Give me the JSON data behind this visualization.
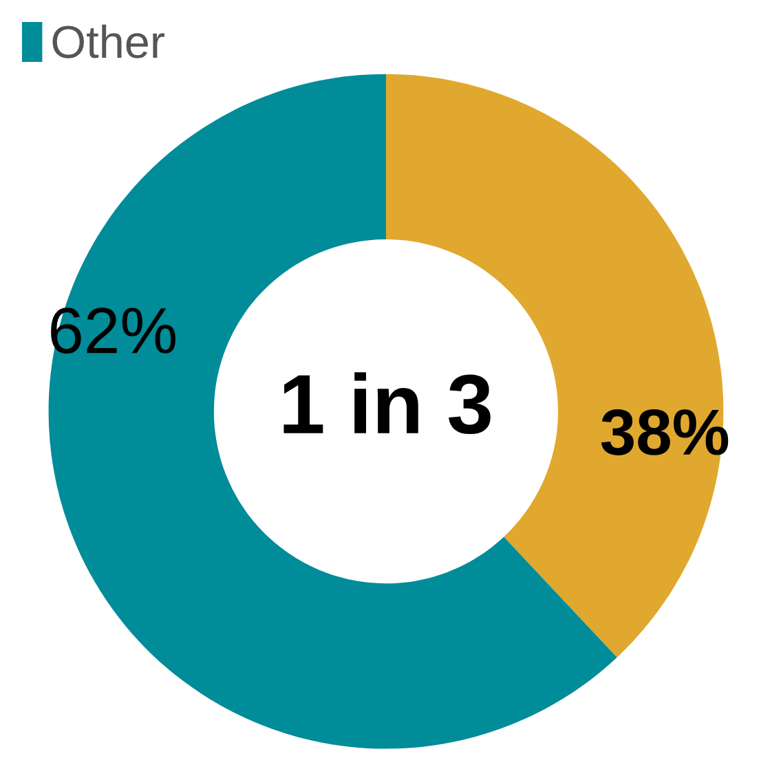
{
  "chart_data": {
    "type": "donut",
    "categories": [
      null,
      "Other"
    ],
    "values": [
      38,
      62
    ],
    "colors": [
      "#e0a82e",
      "#008c99"
    ],
    "value_labels": [
      "38%",
      "62%"
    ],
    "annotations": [
      "1 in 3"
    ],
    "legend": "top left"
  }
}
